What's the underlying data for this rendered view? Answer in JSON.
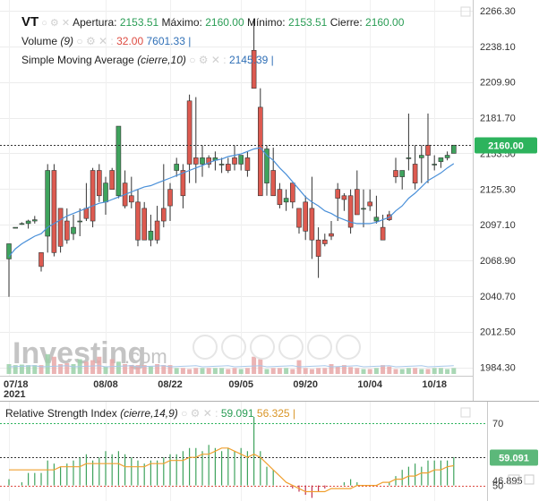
{
  "chart_data": {
    "type": "candlestick",
    "symbol": "VT",
    "ohlc_header": {
      "open_label": "Apertura:",
      "open": "2153.51",
      "high_label": "Máximo:",
      "high": "2160.00",
      "low_label": "Mínimo:",
      "low": "2153.51",
      "close_label": "Cierre:",
      "close": "2160.00"
    },
    "volume_legend": {
      "name": "Volume",
      "params": "(9)",
      "value1": "32.00",
      "value2": "7601.33"
    },
    "sma_legend": {
      "name": "Simple Moving Average",
      "params": "(cierre,10)",
      "value": "2145.39"
    },
    "price_axis": {
      "ticks": [
        2266.3,
        2238.1,
        2209.9,
        2181.7,
        2153.5,
        2125.3,
        2097.1,
        2068.9,
        2040.7,
        2012.5,
        1984.3
      ],
      "tick_labels": [
        "2266.30",
        "2238.10",
        "2209.90",
        "2181.70",
        "2153.50",
        "2125.30",
        "2097.10",
        "2068.90",
        "2040.70",
        "2012.50",
        "1984.30"
      ],
      "ylim": [
        1979,
        2272
      ],
      "last_price": "2160.00"
    },
    "x_axis": {
      "labels": [
        {
          "text": "07/18",
          "sub": "2021",
          "index": 0
        },
        {
          "text": "08/08",
          "index": 15
        },
        {
          "text": "08/22",
          "index": 25
        },
        {
          "text": "09/05",
          "index": 36
        },
        {
          "text": "09/20",
          "index": 46
        },
        {
          "text": "10/04",
          "index": 56
        },
        {
          "text": "10/18",
          "index": 66
        }
      ]
    },
    "candles": [
      [
        2070,
        2082,
        2040,
        2082
      ],
      [
        2095,
        2095,
        2095,
        2095
      ],
      [
        2098,
        2099,
        2097,
        2098
      ],
      [
        2098,
        2101,
        2094,
        2100
      ],
      [
        2100,
        2104,
        2098,
        2101
      ],
      [
        2075,
        2075,
        2060,
        2064
      ],
      [
        2088,
        2145,
        2075,
        2140
      ],
      [
        2140,
        2145,
        2072,
        2075
      ],
      [
        2110,
        2110,
        2075,
        2080
      ],
      [
        2100,
        2110,
        2082,
        2085
      ],
      [
        2090,
        2105,
        2085,
        2095
      ],
      [
        2100,
        2110,
        2088,
        2100
      ],
      [
        2110,
        2130,
        2100,
        2102
      ],
      [
        2140,
        2142,
        2095,
        2100
      ],
      [
        2140,
        2145,
        2115,
        2120
      ],
      [
        2115,
        2135,
        2105,
        2130
      ],
      [
        2140,
        2142,
        2125,
        2125
      ],
      [
        2120,
        2175,
        2118,
        2175
      ],
      [
        2130,
        2140,
        2110,
        2112
      ],
      [
        2120,
        2135,
        2110,
        2115
      ],
      [
        2115,
        2125,
        2080,
        2085
      ],
      [
        2110,
        2115,
        2085,
        2085
      ],
      [
        2085,
        2105,
        2080,
        2092
      ],
      [
        2100,
        2112,
        2082,
        2085
      ],
      [
        2110,
        2145,
        2095,
        2100
      ],
      [
        2125,
        2130,
        2100,
        2112
      ],
      [
        2140,
        2150,
        2135,
        2145
      ],
      [
        2140,
        2145,
        2110,
        2120
      ],
      [
        2195,
        2200,
        2130,
        2145
      ],
      [
        2150,
        2198,
        2130,
        2145
      ],
      [
        2145,
        2160,
        2135,
        2150
      ],
      [
        2150,
        2152,
        2142,
        2145
      ],
      [
        2148,
        2155,
        2140,
        2150
      ],
      [
        2145,
        2150,
        2138,
        2145
      ],
      [
        2145,
        2150,
        2138,
        2140
      ],
      [
        2150,
        2160,
        2140,
        2145
      ],
      [
        2145,
        2152,
        2140,
        2152
      ],
      [
        2150,
        2155,
        2135,
        2140
      ],
      [
        2235,
        2260,
        2205,
        2205
      ],
      [
        2190,
        2205,
        2120,
        2120
      ],
      [
        2130,
        2160,
        2120,
        2157
      ],
      [
        2140,
        2158,
        2120,
        2120
      ],
      [
        2125,
        2130,
        2110,
        2113
      ],
      [
        2115,
        2125,
        2108,
        2118
      ],
      [
        2130,
        2130,
        2110,
        2115
      ],
      [
        2110,
        2110,
        2090,
        2095
      ],
      [
        2115,
        2120,
        2085,
        2092
      ],
      [
        2110,
        2135,
        2070,
        2085
      ],
      [
        2085,
        2095,
        2055,
        2072
      ],
      [
        2085,
        2090,
        2080,
        2082
      ],
      [
        2090,
        2100,
        2085,
        2088
      ],
      [
        2125,
        2130,
        2100,
        2118
      ],
      [
        2120,
        2122,
        2108,
        2117
      ],
      [
        2120,
        2125,
        2090,
        2095
      ],
      [
        2125,
        2140,
        2105,
        2105
      ],
      [
        2110,
        2125,
        2095,
        2110
      ],
      [
        2115,
        2125,
        2108,
        2112
      ],
      [
        2100,
        2120,
        2098,
        2103
      ],
      [
        2095,
        2105,
        2085,
        2085
      ],
      [
        2105,
        2108,
        2100,
        2101
      ],
      [
        2140,
        2150,
        2130,
        2135
      ],
      [
        2135,
        2140,
        2125,
        2140
      ],
      [
        2150,
        2185,
        2140,
        2150
      ],
      [
        2145,
        2160,
        2125,
        2130
      ],
      [
        2150,
        2160,
        2130,
        2152
      ],
      [
        2160,
        2185,
        2130,
        2152
      ],
      [
        2145,
        2152,
        2140,
        2145
      ],
      [
        2147,
        2150,
        2142,
        2150
      ],
      [
        2150,
        2155,
        2148,
        2152
      ],
      [
        2153.51,
        2160,
        2153.51,
        2160
      ]
    ],
    "sma": [
      2072,
      2078,
      2082,
      2085,
      2088,
      2090,
      2095,
      2098,
      2101,
      2104,
      2106,
      2108,
      2110,
      2112,
      2114,
      2115,
      2117,
      2119,
      2121,
      2123,
      2125,
      2127,
      2128,
      2130,
      2132,
      2134,
      2136,
      2138,
      2140,
      2142,
      2144,
      2146,
      2148,
      2149,
      2151,
      2152,
      2153,
      2155,
      2157,
      2158,
      2152,
      2148,
      2142,
      2137,
      2131,
      2125,
      2119,
      2115,
      2112,
      2108,
      2106,
      2103,
      2101,
      2099,
      2098,
      2098,
      2098,
      2099,
      2101,
      2103,
      2108,
      2112,
      2118,
      2122,
      2127,
      2132,
      2135,
      2138,
      2142,
      2145.39
    ],
    "volume": [
      20,
      18,
      19,
      18,
      18,
      18,
      40,
      35,
      20,
      22,
      20,
      30,
      25,
      28,
      35,
      15,
      30,
      25,
      20,
      18,
      18,
      18,
      15,
      20,
      18,
      18,
      12,
      12,
      10,
      12,
      12,
      12,
      12,
      12,
      10,
      12,
      10,
      12,
      35,
      30,
      10,
      12,
      12,
      12,
      10,
      28,
      12,
      10,
      12,
      12,
      20,
      15,
      18,
      14,
      12,
      10,
      10,
      12,
      18,
      15,
      10,
      10,
      12,
      12,
      10,
      10,
      12,
      12,
      10,
      12
    ],
    "rsi": {
      "name": "Relative Strength Index",
      "params": "(cierre,14,9)",
      "value": "59.091",
      "signal": "56.325",
      "ticks": [
        70,
        50
      ],
      "tick_labels": [
        "70",
        "50"
      ],
      "low_label": "46.895",
      "ylim": [
        45,
        76
      ],
      "values": [
        52,
        50,
        51,
        54,
        54,
        54,
        58,
        57,
        56,
        57,
        58,
        59,
        60,
        58,
        59,
        61,
        60,
        61,
        60,
        59,
        58,
        57,
        58,
        58,
        59,
        60,
        60,
        61,
        62,
        62,
        61,
        63,
        62,
        61,
        62,
        61,
        62,
        61,
        72,
        61,
        56,
        55,
        50,
        50,
        49,
        48,
        47,
        46,
        48,
        49,
        50,
        50,
        51,
        52,
        51,
        50,
        50,
        50,
        50,
        51,
        53,
        55,
        56,
        57,
        56,
        58,
        58,
        58,
        58,
        59.091
      ],
      "signal_values": [
        55,
        55,
        55,
        55,
        55,
        55,
        55,
        55,
        56,
        56,
        56,
        56,
        57,
        57,
        57,
        57,
        57,
        57,
        56,
        56,
        56,
        56,
        57,
        57,
        57,
        58,
        58,
        58,
        59,
        59,
        60,
        60,
        61,
        62,
        62,
        61,
        60,
        59,
        60,
        59,
        57,
        55,
        53,
        51,
        50,
        49,
        48,
        48,
        48,
        48,
        49,
        49,
        49,
        49,
        50,
        50,
        50,
        50,
        51,
        51,
        52,
        52,
        53,
        53,
        54,
        54,
        55,
        55,
        56,
        56.325
      ]
    }
  },
  "watermark": {
    "text": "Investing",
    "suffix": ".com"
  }
}
